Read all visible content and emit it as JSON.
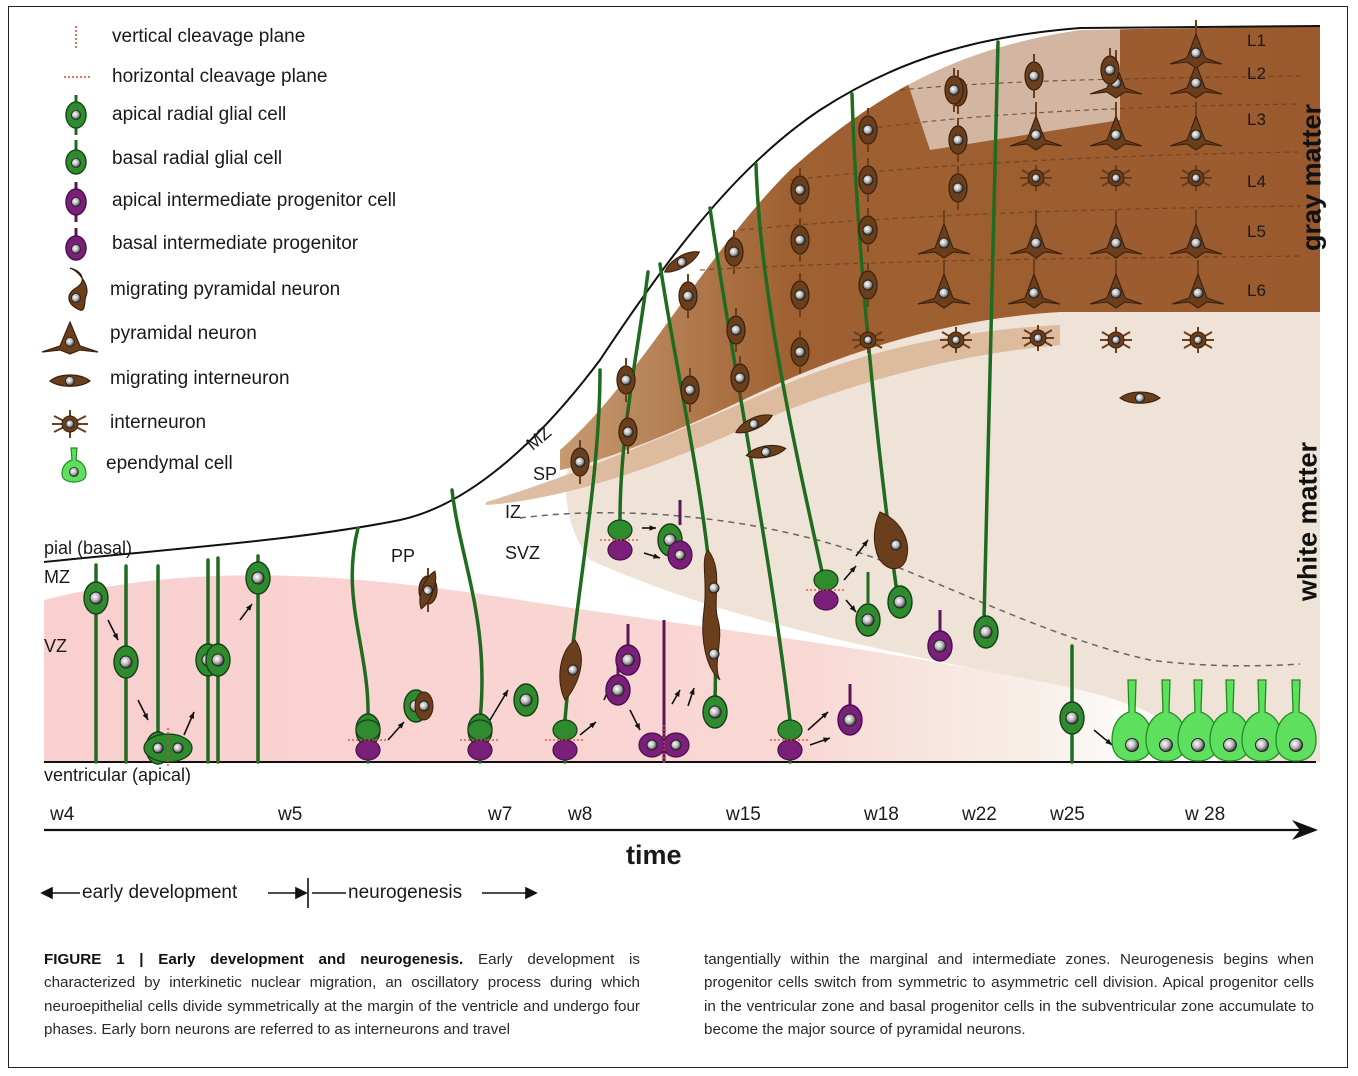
{
  "figure": {
    "legend": {
      "items": [
        {
          "key": "vertical_cleavage",
          "label": "vertical cleavage plane",
          "icon": "vertical-cleavage-line-icon"
        },
        {
          "key": "horizontal_cleavage",
          "label": "horizontal cleavage plane",
          "icon": "horizontal-cleavage-line-icon"
        },
        {
          "key": "apical_rg",
          "label": "apical radial glial cell",
          "icon": "apical-radial-glial-cell-icon"
        },
        {
          "key": "basal_rg",
          "label": "basal radial glial cell",
          "icon": "basal-radial-glial-cell-icon"
        },
        {
          "key": "apical_ip",
          "label": "apical intermediate progenitor cell",
          "icon": "apical-intermediate-progenitor-icon"
        },
        {
          "key": "basal_ip",
          "label": "basal intermediate progenitor",
          "icon": "basal-intermediate-progenitor-icon"
        },
        {
          "key": "migrating_pyr",
          "label": "migrating pyramidal neuron",
          "icon": "migrating-pyramidal-neuron-icon"
        },
        {
          "key": "pyr",
          "label": "pyramidal neuron",
          "icon": "pyramidal-neuron-icon"
        },
        {
          "key": "migrating_int",
          "label": "migrating interneuron",
          "icon": "migrating-interneuron-icon"
        },
        {
          "key": "int",
          "label": "interneuron",
          "icon": "interneuron-icon"
        },
        {
          "key": "ependymal",
          "label": "ependymal cell",
          "icon": "ependymal-cell-icon"
        }
      ]
    },
    "surface_labels": {
      "pial": "pial (basal)",
      "ventricular": "ventricular (apical)"
    },
    "zone_labels": {
      "MZ_left": "MZ",
      "VZ": "VZ",
      "PP": "PP",
      "MZ": "MZ",
      "SP": "SP",
      "IZ": "IZ",
      "SVZ": "SVZ"
    },
    "layer_labels": [
      "L1",
      "L2",
      "L3",
      "L4",
      "L5",
      "L6"
    ],
    "region_labels": {
      "gray": "gray matter",
      "white": "white matter"
    },
    "time_ticks": [
      "w4",
      "w5",
      "w7",
      "w8",
      "w15",
      "w18",
      "w22",
      "w25",
      "w 28"
    ],
    "time_label": "time",
    "phases": {
      "early": "early development",
      "neuro": "neurogenesis"
    },
    "colors": {
      "apical_rg": "#2e8b2e",
      "basal_rg": "#2e8b2e",
      "ip": "#7a1f7a",
      "neuron": "#6b3e1c",
      "ependymal": "#5ee05e",
      "vz_pink": "#f9cfcf",
      "gray_matter": "#9a5a2e",
      "white_matter": "#efe2d6",
      "cleavage": "#e0403a"
    }
  },
  "caption": {
    "title": "FIGURE 1 | Early development and neurogenesis.",
    "left_text": " Early development is characterized by interkinetic nuclear migration, an oscillatory process during which neuroepithelial cells divide symmetrically at the margin of the ventricle and undergo four phases. Early born neurons are referred to as interneurons and travel",
    "right_text": "tangentially within the marginal and intermediate zones. Neurogenesis begins when progenitor cells switch from symmetric to asymmetric cell division. Apical progenitor cells in the ventricular zone and basal progenitor cells in the subventricular zone accumulate to become the major source of pyramidal neurons."
  }
}
